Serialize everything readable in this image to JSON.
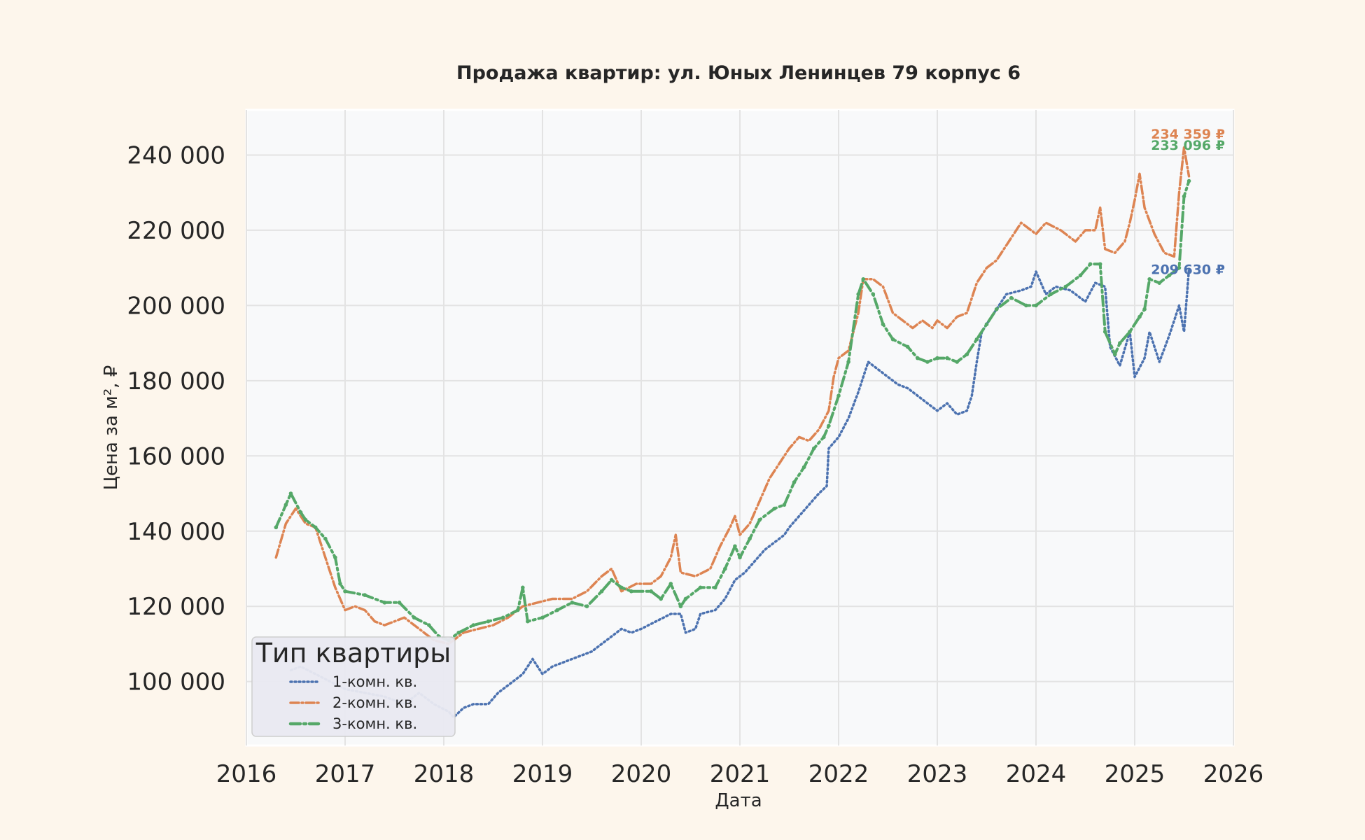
{
  "chart_data": {
    "type": "line",
    "title": "Продажа квартир: ул. Юных Ленинцев 79 корпус 6",
    "xlabel": "Дата",
    "ylabel": "Цена за м², ₽",
    "xlim": [
      2016.0,
      2026.0
    ],
    "ylim": [
      83000,
      252000
    ],
    "xticks": [
      2016,
      2017,
      2018,
      2019,
      2020,
      2021,
      2022,
      2023,
      2024,
      2025,
      2026
    ],
    "xtick_labels": [
      "2016",
      "2017",
      "2018",
      "2019",
      "2020",
      "2021",
      "2022",
      "2023",
      "2024",
      "2025",
      "2026"
    ],
    "yticks": [
      100000,
      120000,
      140000,
      160000,
      180000,
      200000,
      220000,
      240000
    ],
    "ytick_labels": [
      "100 000",
      "120 000",
      "140 000",
      "160 000",
      "180 000",
      "200 000",
      "220 000",
      "240 000"
    ],
    "grid": true,
    "legend": {
      "title": "Тип квартиры",
      "placement": "lower-left"
    },
    "series": [
      {
        "name": "1-комн. кв.",
        "color": "#4c72b0",
        "style": "dotted",
        "end_label": "209 630 ₽",
        "points": [
          [
            2016.45,
            103000
          ],
          [
            2016.55,
            104000
          ],
          [
            2016.7,
            102000
          ],
          [
            2016.85,
            100000
          ],
          [
            2017.0,
            98000
          ],
          [
            2017.2,
            97000
          ],
          [
            2017.4,
            96000
          ],
          [
            2017.6,
            94000
          ],
          [
            2017.75,
            97000
          ],
          [
            2017.9,
            94000
          ],
          [
            2018.05,
            92000
          ],
          [
            2018.1,
            90500
          ],
          [
            2018.2,
            93000
          ],
          [
            2018.3,
            94000
          ],
          [
            2018.45,
            94000
          ],
          [
            2018.55,
            97000
          ],
          [
            2018.7,
            100000
          ],
          [
            2018.8,
            102000
          ],
          [
            2018.9,
            106000
          ],
          [
            2019.0,
            102000
          ],
          [
            2019.1,
            104000
          ],
          [
            2019.3,
            106000
          ],
          [
            2019.5,
            108000
          ],
          [
            2019.6,
            110000
          ],
          [
            2019.7,
            112000
          ],
          [
            2019.8,
            114000
          ],
          [
            2019.9,
            113000
          ],
          [
            2020.0,
            114000
          ],
          [
            2020.15,
            116000
          ],
          [
            2020.3,
            118000
          ],
          [
            2020.4,
            118000
          ],
          [
            2020.45,
            113000
          ],
          [
            2020.55,
            114000
          ],
          [
            2020.6,
            118000
          ],
          [
            2020.75,
            119000
          ],
          [
            2020.85,
            122000
          ],
          [
            2020.95,
            127000
          ],
          [
            2021.05,
            129000
          ],
          [
            2021.15,
            132000
          ],
          [
            2021.25,
            135000
          ],
          [
            2021.35,
            137000
          ],
          [
            2021.45,
            139000
          ],
          [
            2021.5,
            141000
          ],
          [
            2021.6,
            144000
          ],
          [
            2021.7,
            147000
          ],
          [
            2021.8,
            150000
          ],
          [
            2021.88,
            152000
          ],
          [
            2021.9,
            162000
          ],
          [
            2022.0,
            165000
          ],
          [
            2022.1,
            170000
          ],
          [
            2022.2,
            177000
          ],
          [
            2022.3,
            185000
          ],
          [
            2022.4,
            183000
          ],
          [
            2022.5,
            181000
          ],
          [
            2022.6,
            179000
          ],
          [
            2022.7,
            178000
          ],
          [
            2022.8,
            176000
          ],
          [
            2022.9,
            174000
          ],
          [
            2023.0,
            172000
          ],
          [
            2023.1,
            174000
          ],
          [
            2023.2,
            171000
          ],
          [
            2023.3,
            172000
          ],
          [
            2023.35,
            176000
          ],
          [
            2023.4,
            185000
          ],
          [
            2023.45,
            193000
          ],
          [
            2023.55,
            197000
          ],
          [
            2023.7,
            203000
          ],
          [
            2023.85,
            204000
          ],
          [
            2023.95,
            205000
          ],
          [
            2024.0,
            209000
          ],
          [
            2024.1,
            203000
          ],
          [
            2024.2,
            205000
          ],
          [
            2024.35,
            204000
          ],
          [
            2024.5,
            201000
          ],
          [
            2024.6,
            206000
          ],
          [
            2024.7,
            205000
          ],
          [
            2024.75,
            189000
          ],
          [
            2024.85,
            184000
          ],
          [
            2024.95,
            193000
          ],
          [
            2025.0,
            181000
          ],
          [
            2025.1,
            186000
          ],
          [
            2025.15,
            193000
          ],
          [
            2025.25,
            185000
          ],
          [
            2025.35,
            192000
          ],
          [
            2025.45,
            200000
          ],
          [
            2025.5,
            193000
          ],
          [
            2025.55,
            209630
          ]
        ]
      },
      {
        "name": "2-комн. кв.",
        "color": "#dd8452",
        "style": "dashdot",
        "end_label": "234 359 ₽",
        "points": [
          [
            2016.3,
            133000
          ],
          [
            2016.4,
            142000
          ],
          [
            2016.5,
            146000
          ],
          [
            2016.6,
            142000
          ],
          [
            2016.7,
            141000
          ],
          [
            2016.8,
            133000
          ],
          [
            2016.9,
            125000
          ],
          [
            2017.0,
            119000
          ],
          [
            2017.1,
            120000
          ],
          [
            2017.2,
            119000
          ],
          [
            2017.3,
            116000
          ],
          [
            2017.4,
            115000
          ],
          [
            2017.6,
            117000
          ],
          [
            2017.75,
            114000
          ],
          [
            2017.9,
            111000
          ],
          [
            2018.05,
            110000
          ],
          [
            2018.2,
            113000
          ],
          [
            2018.35,
            114000
          ],
          [
            2018.5,
            115000
          ],
          [
            2018.65,
            117000
          ],
          [
            2018.8,
            120000
          ],
          [
            2018.95,
            121000
          ],
          [
            2019.1,
            122000
          ],
          [
            2019.3,
            122000
          ],
          [
            2019.45,
            124000
          ],
          [
            2019.6,
            128000
          ],
          [
            2019.7,
            130000
          ],
          [
            2019.8,
            124000
          ],
          [
            2019.95,
            126000
          ],
          [
            2020.1,
            126000
          ],
          [
            2020.2,
            128000
          ],
          [
            2020.3,
            133000
          ],
          [
            2020.35,
            139000
          ],
          [
            2020.4,
            129000
          ],
          [
            2020.55,
            128000
          ],
          [
            2020.7,
            130000
          ],
          [
            2020.8,
            136000
          ],
          [
            2020.9,
            141000
          ],
          [
            2020.95,
            144000
          ],
          [
            2021.0,
            139000
          ],
          [
            2021.1,
            142000
          ],
          [
            2021.2,
            148000
          ],
          [
            2021.3,
            154000
          ],
          [
            2021.4,
            158000
          ],
          [
            2021.5,
            162000
          ],
          [
            2021.6,
            165000
          ],
          [
            2021.7,
            164000
          ],
          [
            2021.8,
            167000
          ],
          [
            2021.9,
            172000
          ],
          [
            2021.95,
            181000
          ],
          [
            2022.0,
            186000
          ],
          [
            2022.1,
            188000
          ],
          [
            2022.2,
            198000
          ],
          [
            2022.25,
            207000
          ],
          [
            2022.35,
            207000
          ],
          [
            2022.45,
            205000
          ],
          [
            2022.55,
            198000
          ],
          [
            2022.65,
            196000
          ],
          [
            2022.75,
            194000
          ],
          [
            2022.85,
            196000
          ],
          [
            2022.95,
            194000
          ],
          [
            2023.0,
            196000
          ],
          [
            2023.1,
            194000
          ],
          [
            2023.2,
            197000
          ],
          [
            2023.3,
            198000
          ],
          [
            2023.4,
            206000
          ],
          [
            2023.5,
            210000
          ],
          [
            2023.6,
            212000
          ],
          [
            2023.7,
            216000
          ],
          [
            2023.85,
            222000
          ],
          [
            2024.0,
            219000
          ],
          [
            2024.1,
            222000
          ],
          [
            2024.25,
            220000
          ],
          [
            2024.4,
            217000
          ],
          [
            2024.5,
            220000
          ],
          [
            2024.6,
            220000
          ],
          [
            2024.65,
            226000
          ],
          [
            2024.7,
            215000
          ],
          [
            2024.8,
            214000
          ],
          [
            2024.9,
            217000
          ],
          [
            2024.95,
            222000
          ],
          [
            2025.0,
            228000
          ],
          [
            2025.05,
            235000
          ],
          [
            2025.1,
            226000
          ],
          [
            2025.2,
            219000
          ],
          [
            2025.3,
            214000
          ],
          [
            2025.4,
            213000
          ],
          [
            2025.45,
            230000
          ],
          [
            2025.5,
            242000
          ],
          [
            2025.55,
            234359
          ]
        ]
      },
      {
        "name": "3-комн. кв.",
        "color": "#55a868",
        "style": "dashdot-marker",
        "end_label": "233 096 ₽",
        "points": [
          [
            2016.3,
            141000
          ],
          [
            2016.4,
            147000
          ],
          [
            2016.45,
            150000
          ],
          [
            2016.55,
            145000
          ],
          [
            2016.6,
            143000
          ],
          [
            2016.7,
            141000
          ],
          [
            2016.8,
            138000
          ],
          [
            2016.9,
            133000
          ],
          [
            2016.95,
            126000
          ],
          [
            2017.0,
            124000
          ],
          [
            2017.2,
            123000
          ],
          [
            2017.4,
            121000
          ],
          [
            2017.55,
            121000
          ],
          [
            2017.7,
            117000
          ],
          [
            2017.85,
            115000
          ],
          [
            2017.95,
            112000
          ],
          [
            2018.05,
            111000
          ],
          [
            2018.15,
            113000
          ],
          [
            2018.3,
            115000
          ],
          [
            2018.45,
            116000
          ],
          [
            2018.6,
            117000
          ],
          [
            2018.75,
            119000
          ],
          [
            2018.8,
            125000
          ],
          [
            2018.85,
            116000
          ],
          [
            2019.0,
            117000
          ],
          [
            2019.15,
            119000
          ],
          [
            2019.3,
            121000
          ],
          [
            2019.45,
            120000
          ],
          [
            2019.6,
            124000
          ],
          [
            2019.7,
            127000
          ],
          [
            2019.8,
            125000
          ],
          [
            2019.9,
            124000
          ],
          [
            2020.1,
            124000
          ],
          [
            2020.2,
            122000
          ],
          [
            2020.3,
            126000
          ],
          [
            2020.4,
            120000
          ],
          [
            2020.45,
            122000
          ],
          [
            2020.6,
            125000
          ],
          [
            2020.75,
            125000
          ],
          [
            2020.85,
            130000
          ],
          [
            2020.95,
            136000
          ],
          [
            2021.0,
            133000
          ],
          [
            2021.1,
            138000
          ],
          [
            2021.2,
            143000
          ],
          [
            2021.35,
            146000
          ],
          [
            2021.45,
            147000
          ],
          [
            2021.55,
            153000
          ],
          [
            2021.65,
            157000
          ],
          [
            2021.75,
            162000
          ],
          [
            2021.85,
            165000
          ],
          [
            2021.9,
            168000
          ],
          [
            2022.0,
            176000
          ],
          [
            2022.1,
            185000
          ],
          [
            2022.2,
            203000
          ],
          [
            2022.25,
            207000
          ],
          [
            2022.35,
            203000
          ],
          [
            2022.45,
            195000
          ],
          [
            2022.55,
            191000
          ],
          [
            2022.7,
            189000
          ],
          [
            2022.8,
            186000
          ],
          [
            2022.9,
            185000
          ],
          [
            2023.0,
            186000
          ],
          [
            2023.1,
            186000
          ],
          [
            2023.2,
            185000
          ],
          [
            2023.3,
            187000
          ],
          [
            2023.4,
            191000
          ],
          [
            2023.5,
            195000
          ],
          [
            2023.6,
            199000
          ],
          [
            2023.75,
            202000
          ],
          [
            2023.9,
            200000
          ],
          [
            2024.0,
            200000
          ],
          [
            2024.15,
            203000
          ],
          [
            2024.3,
            205000
          ],
          [
            2024.45,
            208000
          ],
          [
            2024.55,
            211000
          ],
          [
            2024.65,
            211000
          ],
          [
            2024.7,
            193000
          ],
          [
            2024.8,
            187000
          ],
          [
            2024.85,
            190000
          ],
          [
            2024.95,
            193000
          ],
          [
            2025.05,
            197000
          ],
          [
            2025.1,
            199000
          ],
          [
            2025.15,
            207000
          ],
          [
            2025.25,
            206000
          ],
          [
            2025.35,
            208000
          ],
          [
            2025.45,
            210000
          ],
          [
            2025.5,
            229000
          ],
          [
            2025.55,
            233096
          ]
        ]
      }
    ]
  }
}
